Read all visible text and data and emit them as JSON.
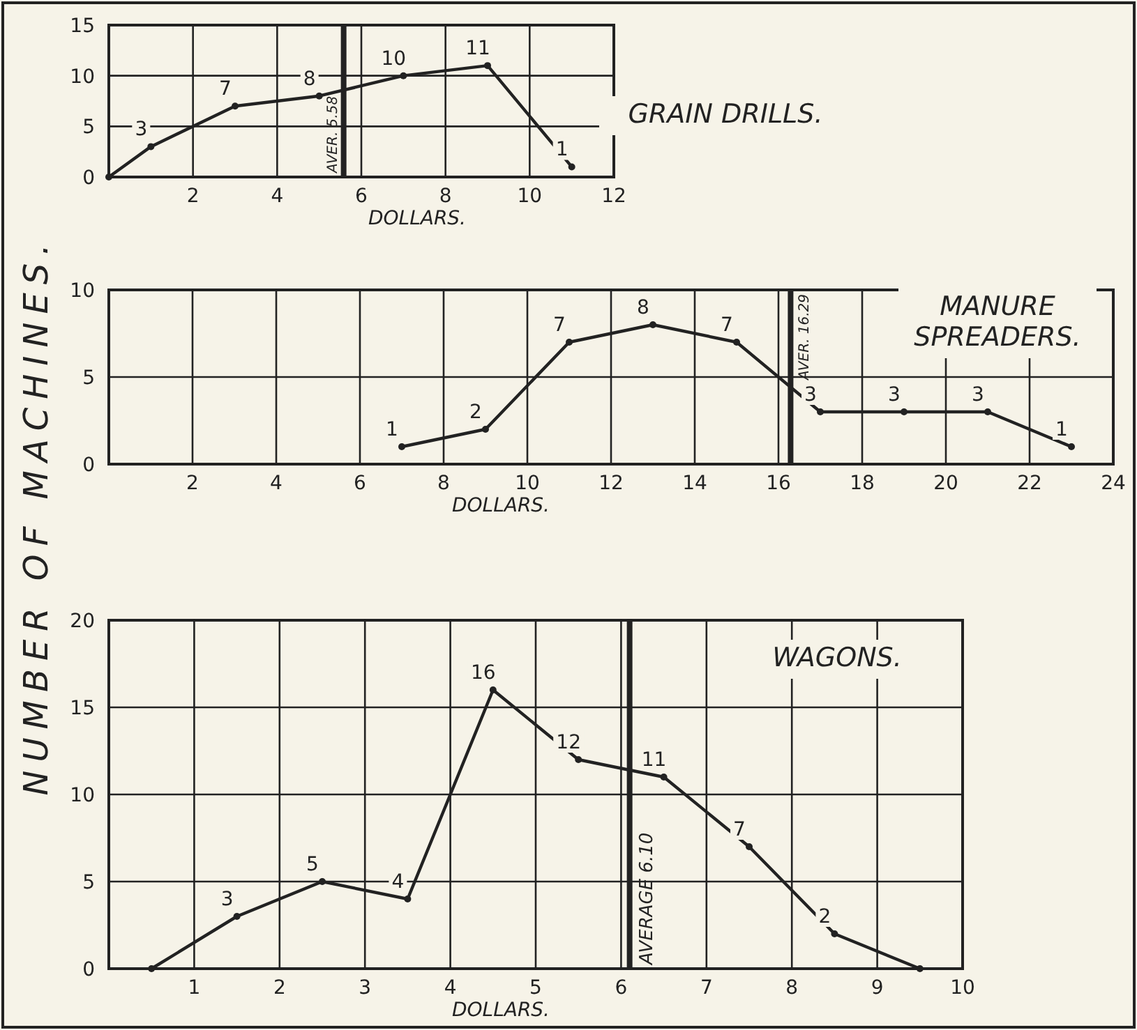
{
  "chart_data": [
    {
      "type": "line",
      "ylabel": "NUMBER OF MACHINES.",
      "xlabel": "DOLLARS.",
      "annotations": [
        "GRAIN DRILLS."
      ],
      "x": [
        0,
        1,
        3,
        5,
        7,
        9,
        11
      ],
      "series": [
        {
          "color": "#222222",
          "values": [
            0,
            3,
            7,
            8,
            10,
            11,
            1
          ],
          "value_labels": [
            null,
            "3",
            "7",
            "8",
            "10",
            "11",
            "1"
          ]
        }
      ],
      "xlim": [
        0,
        12
      ],
      "xticks": [
        2,
        4,
        6,
        8,
        10,
        12
      ],
      "ylim": [
        0,
        15
      ],
      "yticks": [
        0,
        5,
        10,
        15
      ],
      "grid": true,
      "marker": "circle",
      "line_style": "solid",
      "ref_lines": [
        {
          "axis": "x",
          "value": 5.58,
          "label": "AVER. 5.58"
        }
      ]
    },
    {
      "type": "line",
      "xlabel": "DOLLARS.",
      "annotations": [
        "MANURE SPREADERS."
      ],
      "x": [
        7,
        9,
        11,
        13,
        15,
        17,
        19,
        21,
        23
      ],
      "series": [
        {
          "color": "#222222",
          "values": [
            1,
            2,
            7,
            8,
            7,
            3,
            3,
            3,
            1
          ],
          "value_labels": [
            "1",
            "2",
            "7",
            "8",
            "7",
            "3",
            "3",
            "3",
            "1"
          ]
        }
      ],
      "xlim": [
        0,
        24
      ],
      "xticks": [
        2,
        4,
        6,
        8,
        10,
        12,
        14,
        16,
        18,
        20,
        22,
        24
      ],
      "ylim": [
        0,
        10
      ],
      "yticks": [
        0,
        5,
        10
      ],
      "grid": true,
      "marker": "circle",
      "line_style": "solid",
      "ref_lines": [
        {
          "axis": "x",
          "value": 16.29,
          "label": "AVER. 16.29"
        }
      ]
    },
    {
      "type": "line",
      "xlabel": "DOLLARS.",
      "annotations": [
        "WAGONS."
      ],
      "x": [
        0.5,
        1.5,
        2.5,
        3.5,
        4.5,
        5.5,
        6.5,
        7.5,
        8.5,
        9.5
      ],
      "series": [
        {
          "color": "#222222",
          "values": [
            0,
            3,
            5,
            4,
            16,
            12,
            11,
            7,
            2,
            0
          ],
          "value_labels": [
            null,
            "3",
            "5",
            "4",
            "16",
            "12",
            "11",
            "7",
            "2",
            null
          ]
        }
      ],
      "xlim": [
        0,
        10
      ],
      "xticks": [
        1,
        2,
        3,
        4,
        5,
        6,
        7,
        8,
        9,
        10
      ],
      "ylim": [
        0,
        20
      ],
      "yticks": [
        0,
        5,
        10,
        15,
        20
      ],
      "grid": true,
      "marker": "circle",
      "line_style": "solid",
      "ref_lines": [
        {
          "axis": "x",
          "value": 6.1,
          "label": "AVERAGE 6.10"
        }
      ]
    }
  ]
}
